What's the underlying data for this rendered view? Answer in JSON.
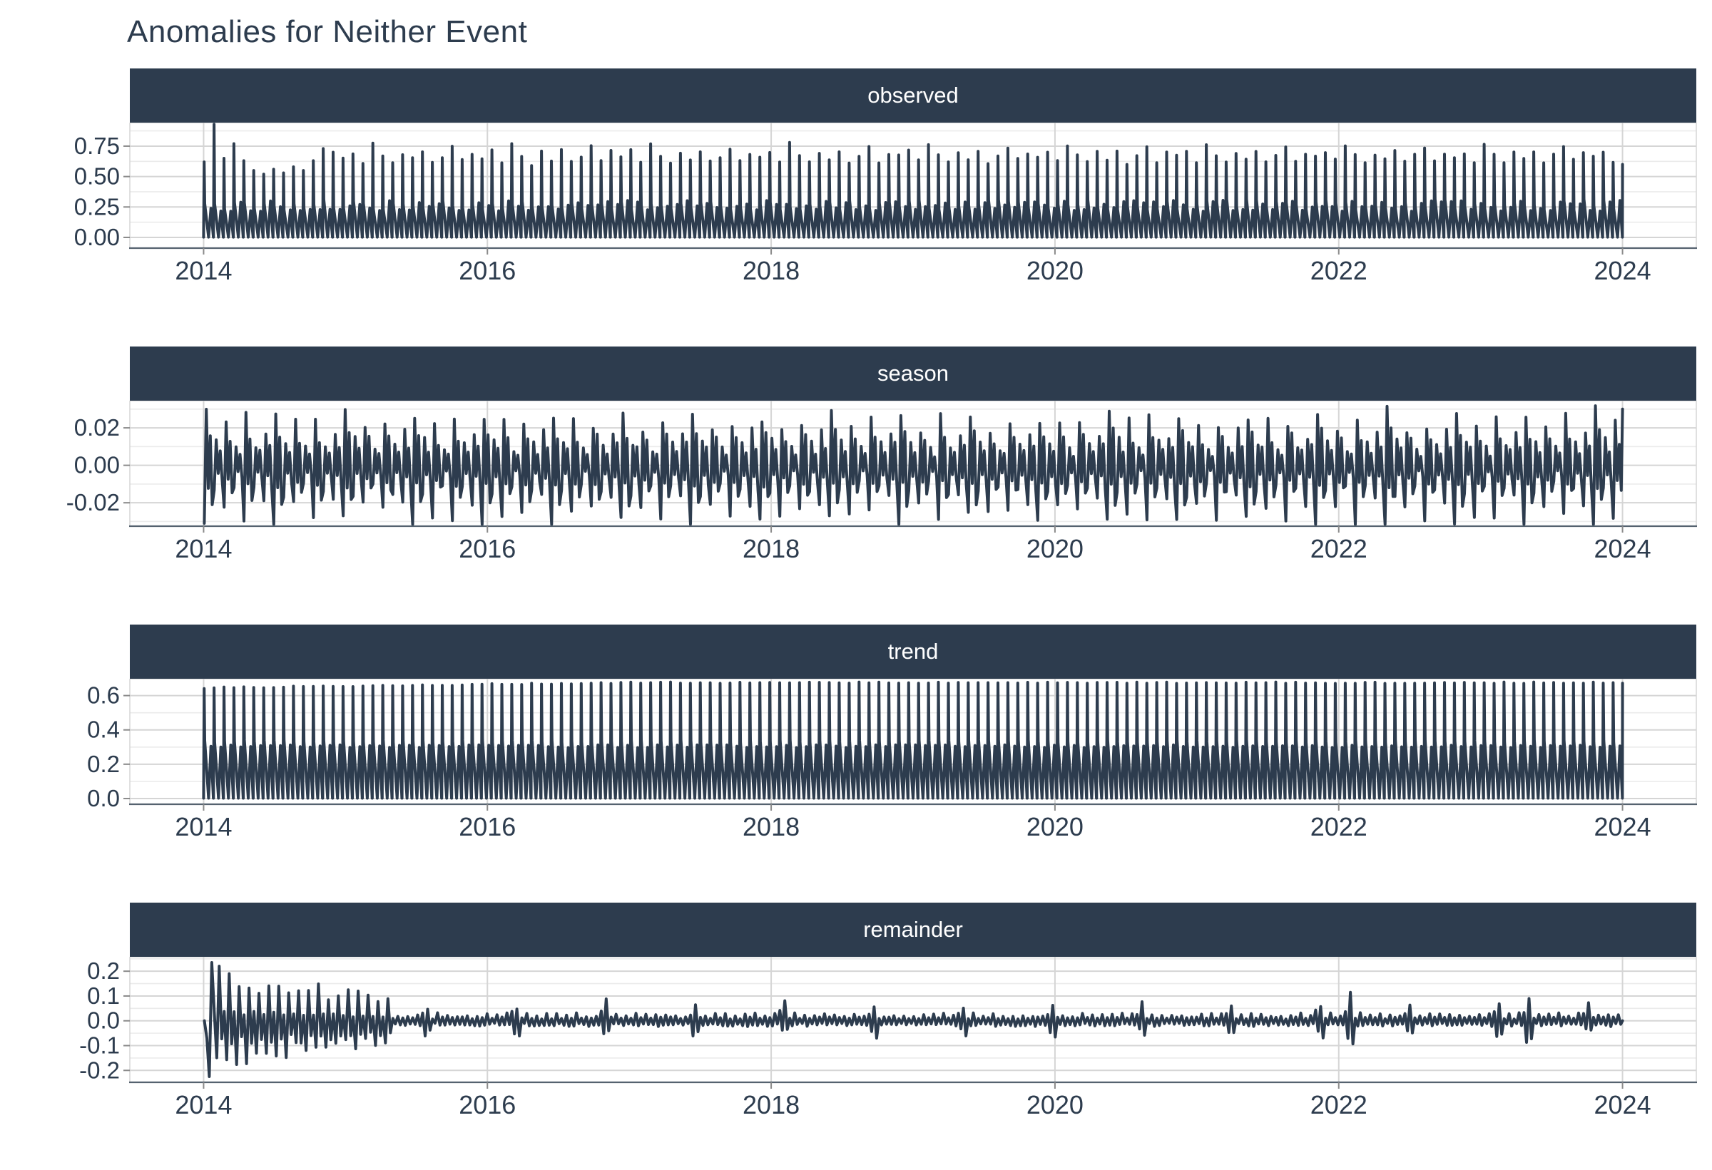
{
  "title": "Anomalies for Neither Event",
  "style": {
    "dark": "#2d3c4e",
    "strip_bg": "#2d3c4e",
    "strip_text": "#ffffff",
    "line": "#2d3c4e",
    "grid_major": "#d5d5d5",
    "grid_minor": "#ebebeb",
    "axis_line": "#55626f",
    "tick": "#8a8a8a",
    "background": "#ffffff"
  },
  "chart_data": {
    "type": "line",
    "title": "Anomalies for Neither Event",
    "x_axis": {
      "ticks": [
        2014,
        2016,
        2018,
        2020,
        2022,
        2024
      ],
      "tick_labels": [
        "2014",
        "2016",
        "2018",
        "2020",
        "2022",
        "2024"
      ],
      "domain": [
        2013.48,
        2024.52
      ],
      "data_start": 2014,
      "data_end": 2024
    },
    "cycles": 143,
    "seed": 20140101,
    "panels": [
      {
        "label": "observed",
        "ylim": [
          -0.088,
          0.943
        ],
        "yticks": [
          0.0,
          0.25,
          0.5,
          0.75
        ],
        "ytick_labels": [
          "0.00",
          "0.25",
          "0.50",
          "0.75"
        ],
        "minor": [
          0.125,
          0.375,
          0.625,
          0.875
        ],
        "gen": {
          "kind": "sawtooth",
          "mid": 0.27,
          "mid2": 0.26,
          "mid_jitter": 0.045,
          "peak_base": 0.655,
          "peak_jitter": 0.02,
          "first_peaks": [
            0.62,
            0.93,
            0.65,
            0.77,
            0.63,
            0.55,
            0.52,
            0.56,
            0.53,
            0.58,
            0.55,
            0.63,
            0.73,
            0.7
          ],
          "peak_offsets": [
            0.005,
            0.05,
            -0.03,
            0.115,
            0.02,
            -0.05,
            0.035,
            -0.015,
            0.06,
            -0.04,
            0.015,
            0.08,
            -0.025,
            0.045
          ],
          "end_value": 0.6
        }
      },
      {
        "label": "season",
        "ylim": [
          -0.0325,
          0.0345
        ],
        "yticks": [
          -0.02,
          0.0,
          0.02
        ],
        "ytick_labels": [
          "-0.02",
          "0.00",
          "0.02"
        ],
        "minor": [
          -0.03,
          -0.01,
          0.01,
          0.03
        ],
        "gen": {
          "kind": "noise",
          "pattern": [
            -1.0,
            0.88,
            -0.35,
            0.55,
            -0.6
          ],
          "amp_cycle": [
            0.031,
            0.015,
            0.024,
            0.01,
            0.027,
            0.013,
            0.019
          ],
          "end_value": 0.03
        }
      },
      {
        "label": "trend",
        "ylim": [
          -0.0333,
          0.698
        ],
        "yticks": [
          0.0,
          0.2,
          0.4,
          0.6
        ],
        "ytick_labels": [
          "0.0",
          "0.2",
          "0.4",
          "0.6"
        ],
        "minor": [
          0.1,
          0.3,
          0.5,
          0.7
        ],
        "gen": {
          "kind": "sawtooth",
          "mid": 0.335,
          "mid2": 0.305,
          "mid_jitter": 0.008,
          "peak_base": 0.645,
          "peak_rise": 0.03,
          "rise_cycles": 42,
          "peak_jitter": 0.004,
          "end_value": 0.672
        }
      },
      {
        "label": "remainder",
        "ylim": [
          -0.248,
          0.258
        ],
        "yticks": [
          -0.2,
          -0.1,
          0.0,
          0.1,
          0.2
        ],
        "ytick_labels": [
          "-0.2",
          "-0.1",
          "0.0",
          "0.1",
          "0.2"
        ],
        "minor": [
          -0.25,
          -0.15,
          -0.05,
          0.05,
          0.15,
          0.25
        ],
        "gen": {
          "kind": "remainder",
          "first": [
            0.0,
            -0.07,
            -0.225,
            0.235
          ],
          "early_cycles": 19,
          "early_amp_hi": 0.21,
          "early_amp_lo": 0.09,
          "early_pattern": [
            0.2,
            -0.9,
            1.0,
            -0.55
          ],
          "late_pattern": [
            0.4,
            -0.55,
            0.85,
            -0.6
          ],
          "late_amp": 0.03,
          "spike_every": 9,
          "spike_phase": 5,
          "spike_mult": 3.0,
          "big_spikes": [
            115,
            133
          ],
          "big_mult": 4.5,
          "end_value": 0.0
        }
      }
    ]
  }
}
